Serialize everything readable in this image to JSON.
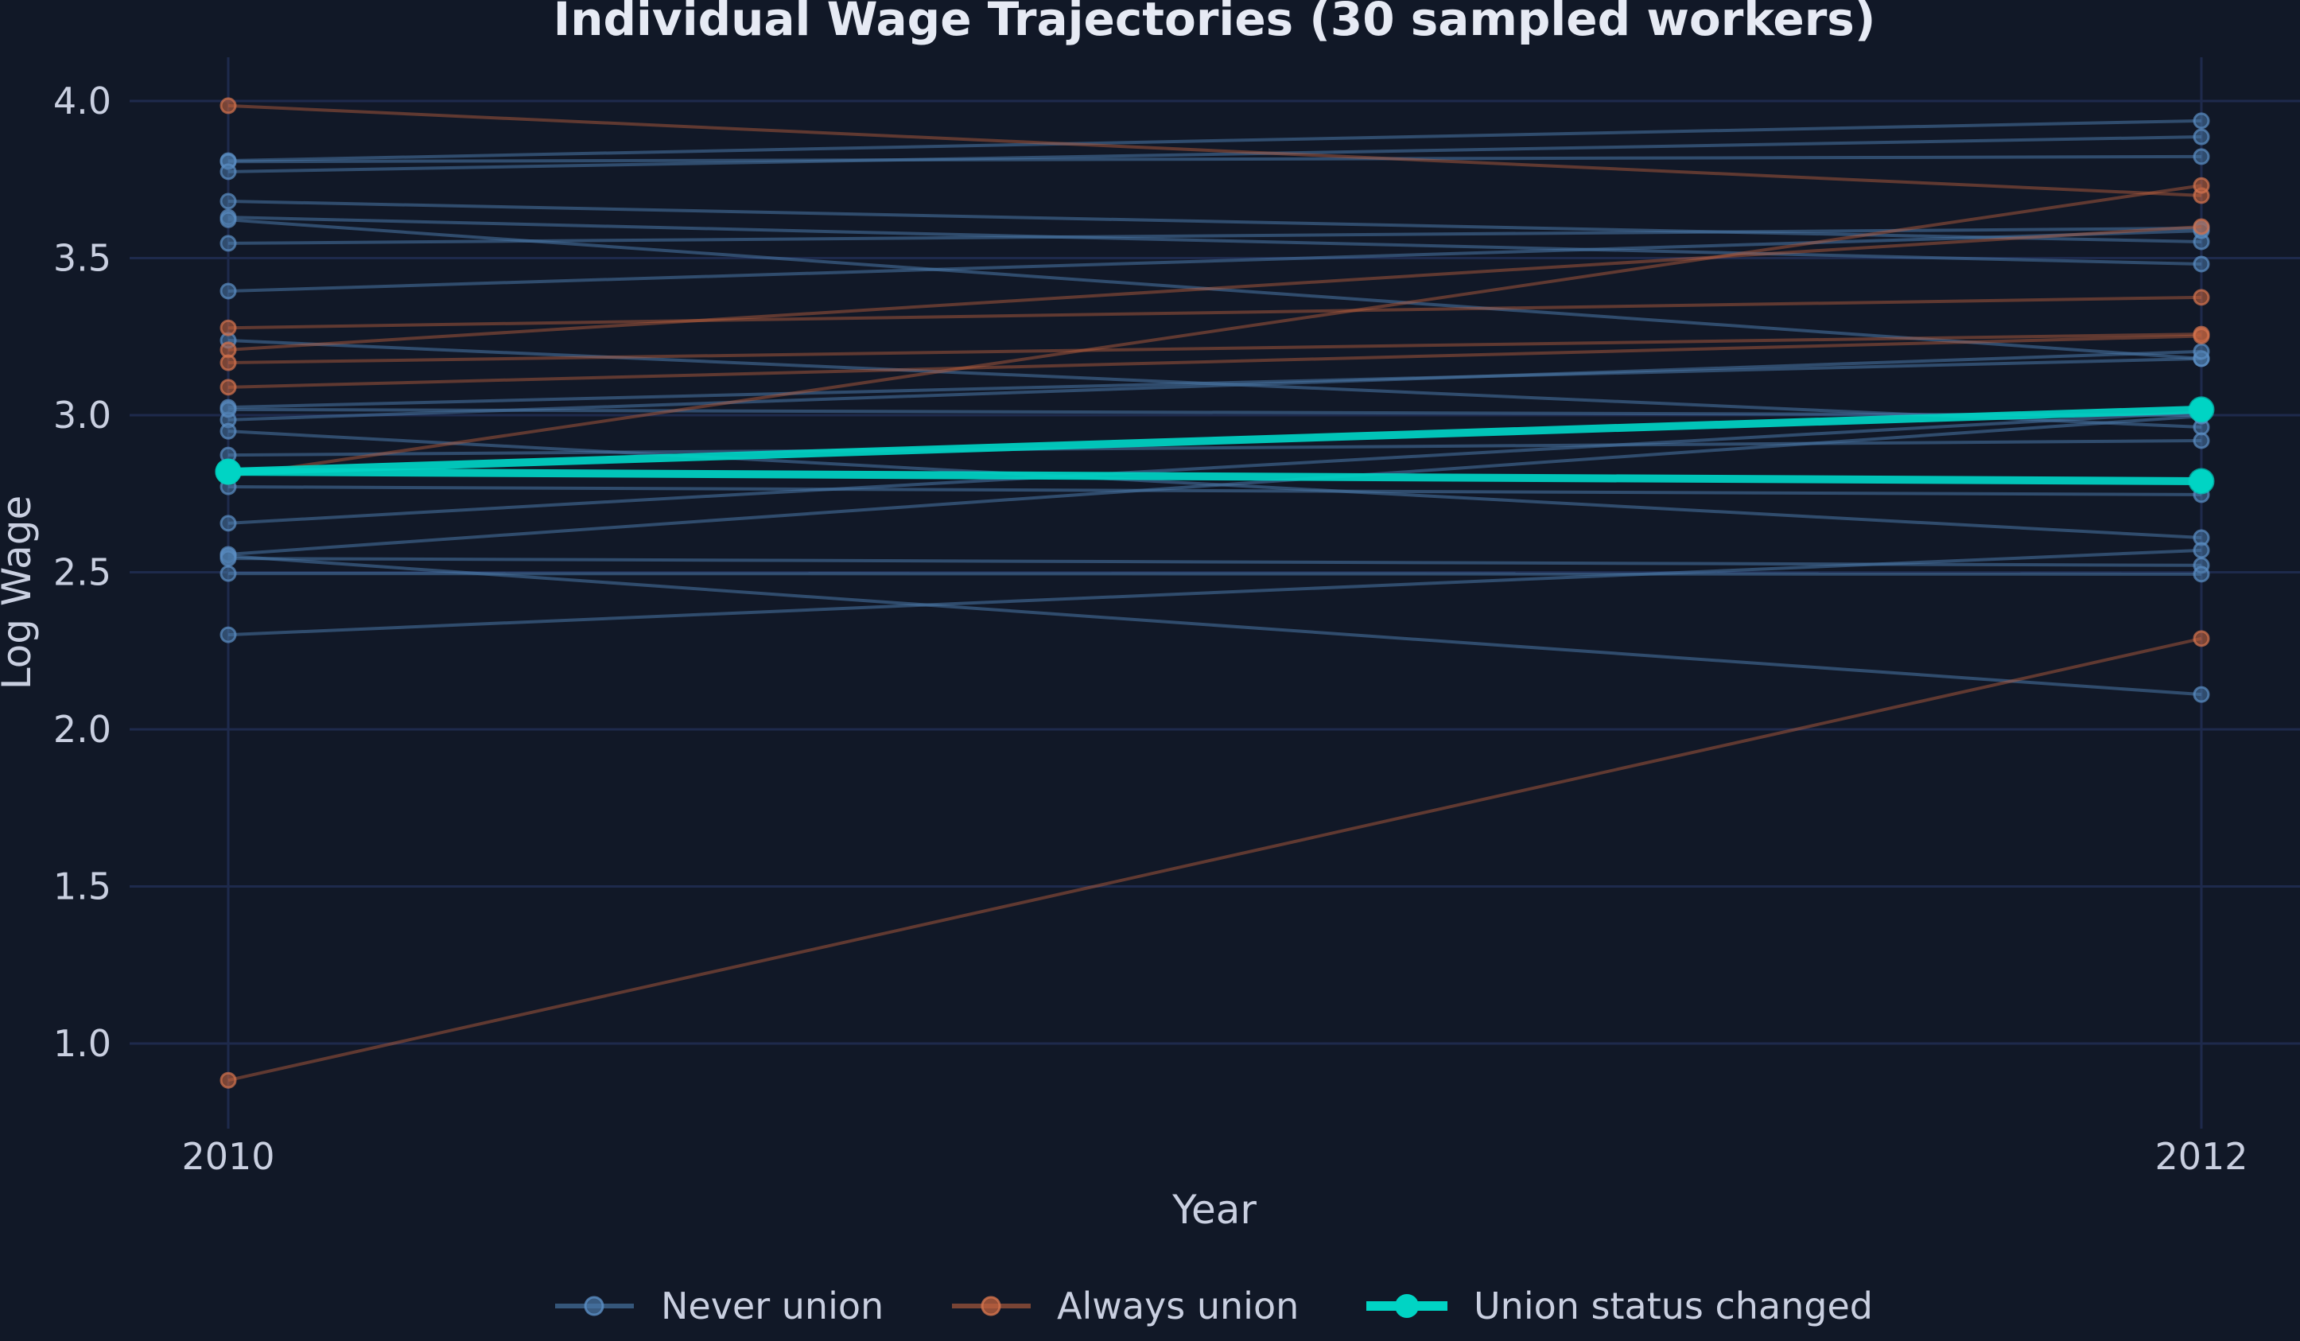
{
  "chart_data": {
    "type": "line",
    "title": "Individual Wage Trajectories (30 sampled workers)",
    "xlabel": "Year",
    "ylabel": "Log Wage",
    "x": [
      2010,
      2012
    ],
    "x_ticks": [
      "2010",
      "2012"
    ],
    "y_ticks": [
      "1.0",
      "1.5",
      "2.0",
      "2.5",
      "3.0",
      "3.5",
      "4.0"
    ],
    "y_tick_values": [
      1.0,
      1.5,
      2.0,
      2.5,
      3.0,
      3.5,
      4.0
    ],
    "ylim": [
      0.75,
      4.14
    ],
    "grid": true,
    "legend_position": "bottom",
    "legend": [
      {
        "label": "Never union",
        "color": "#4A78A8",
        "style": "thin-line-marker"
      },
      {
        "label": "Always union",
        "color": "#C0623F",
        "style": "thin-line-marker"
      },
      {
        "label": "Union status changed",
        "color": "#00D4C4",
        "style": "thick-line-marker"
      }
    ],
    "series": [
      {
        "name": "Never union",
        "color": "#4A78A8",
        "trajectories": [
          [
            3.81,
            3.937
          ],
          [
            3.807,
            3.823
          ],
          [
            3.775,
            3.886
          ],
          [
            3.681,
            3.552
          ],
          [
            3.63,
            3.481
          ],
          [
            3.622,
            3.18
          ],
          [
            3.547,
            3.595
          ],
          [
            3.395,
            3.587
          ],
          [
            3.238,
            2.962
          ],
          [
            3.025,
            3.18
          ],
          [
            2.985,
            3.203
          ],
          [
            3.018,
            3.0
          ],
          [
            2.873,
            2.919
          ],
          [
            2.949,
            2.61
          ],
          [
            2.772,
            2.747
          ],
          [
            2.656,
            3.01
          ],
          [
            2.557,
            2.997
          ],
          [
            2.552,
            2.111
          ],
          [
            2.544,
            2.522
          ],
          [
            2.496,
            2.494
          ],
          [
            2.301,
            2.57
          ]
        ]
      },
      {
        "name": "Always union",
        "color": "#C0623F",
        "trajectories": [
          [
            3.985,
            3.699
          ],
          [
            3.278,
            3.375
          ],
          [
            3.208,
            3.6
          ],
          [
            3.167,
            3.258
          ],
          [
            3.089,
            3.252
          ],
          [
            2.805,
            3.731
          ],
          [
            0.883,
            2.289
          ]
        ]
      },
      {
        "name": "Union status changed",
        "color": "#00D4C4",
        "trajectories": [
          [
            2.82,
            3.018
          ],
          [
            2.82,
            2.79
          ]
        ]
      }
    ]
  }
}
